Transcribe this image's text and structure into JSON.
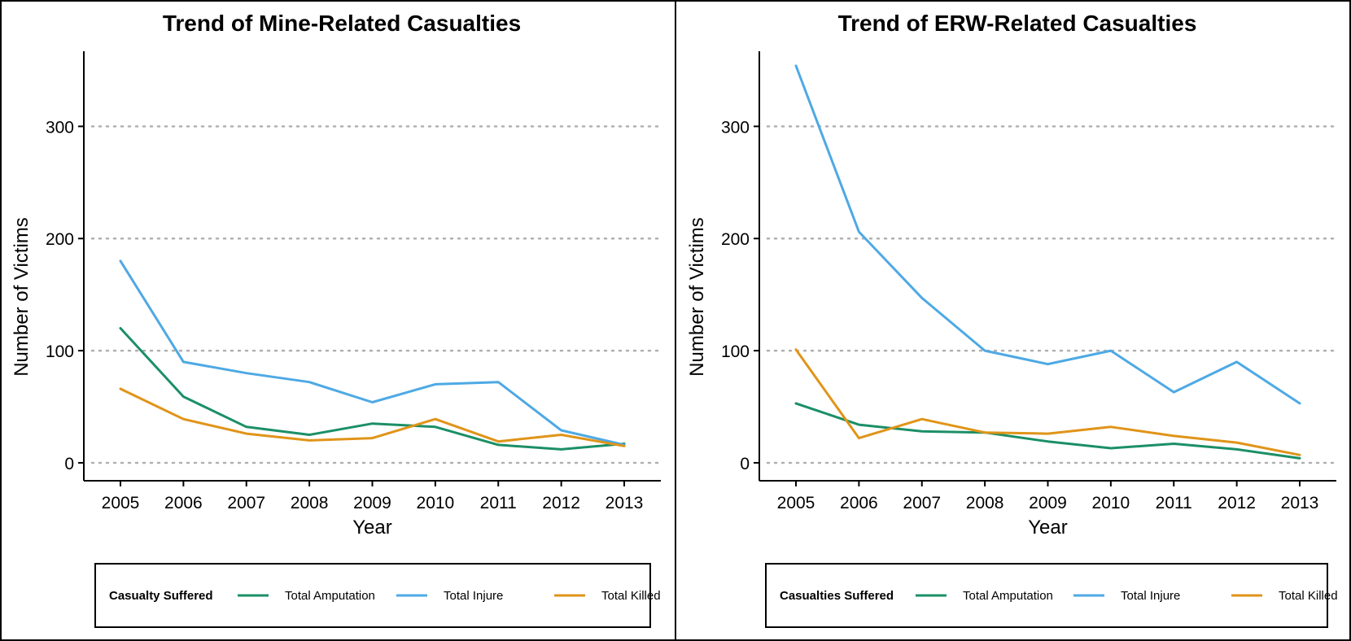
{
  "chart_data": [
    {
      "type": "line",
      "title": "Trend of Mine-Related Casualties",
      "xlabel": "Year",
      "ylabel": "Number of Victims",
      "x": [
        "2005",
        "2006",
        "2007",
        "2008",
        "2009",
        "2010",
        "2011",
        "2012",
        "2013"
      ],
      "ylim": [
        -16,
        367
      ],
      "yticks": [
        "0",
        "100",
        "200",
        "300"
      ],
      "grid": "horizontal dotted",
      "legend_position": "bottom",
      "legend_title": "Casualty Suffered",
      "series": [
        {
          "name": "Total Amputation",
          "color": "#1b8f66",
          "values": [
            120,
            59,
            32,
            25,
            35,
            32,
            16,
            12,
            17
          ]
        },
        {
          "name": "Total Injure",
          "color": "#4ea9e4",
          "values": [
            180,
            90,
            80,
            72,
            54,
            70,
            72,
            29,
            16
          ]
        },
        {
          "name": "Total Killed",
          "color": "#e09419",
          "values": [
            66,
            39,
            26,
            20,
            22,
            39,
            19,
            25,
            15
          ]
        }
      ]
    },
    {
      "type": "line",
      "title": "Trend of ERW-Related Casualties",
      "xlabel": "Year",
      "ylabel": "Number of Victims",
      "x": [
        "2005",
        "2006",
        "2007",
        "2008",
        "2009",
        "2010",
        "2011",
        "2012",
        "2013"
      ],
      "ylim": [
        -16,
        367
      ],
      "yticks": [
        "0",
        "100",
        "200",
        "300"
      ],
      "grid": "horizontal dotted",
      "legend_position": "bottom",
      "legend_title": "Casualties Suffered",
      "series": [
        {
          "name": "Total Amputation",
          "color": "#1b8f66",
          "values": [
            53,
            34,
            28,
            27,
            19,
            13,
            17,
            12,
            4
          ]
        },
        {
          "name": "Total Injure",
          "color": "#4ea9e4",
          "values": [
            354,
            206,
            147,
            100,
            88,
            100,
            63,
            90,
            53
          ]
        },
        {
          "name": "Total Killed",
          "color": "#e09419",
          "values": [
            101,
            22,
            39,
            27,
            26,
            32,
            24,
            18,
            7
          ]
        }
      ]
    }
  ]
}
